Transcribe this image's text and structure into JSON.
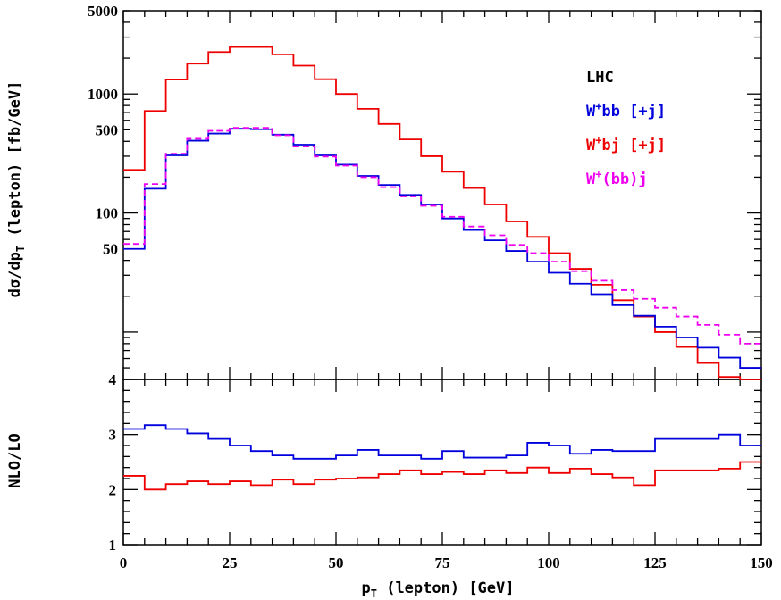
{
  "chart_data": [
    {
      "type": "line",
      "panel": "top",
      "xlabel_main": "p",
      "xlabel_sub": "T",
      "xlabel_rest": " (lepton) [GeV]",
      "ylabel_main": "dσ/dp",
      "ylabel_sub": "T",
      "ylabel_rest": " (lepton) [fb/GeV]",
      "yscale": "log",
      "xlim": [
        0,
        150
      ],
      "ylim": [
        4,
        5000
      ],
      "x_ticks": [
        "0",
        "25",
        "50",
        "75",
        "100",
        "125",
        "150"
      ],
      "y_ticks": [
        {
          "value": 5000,
          "label": "5000"
        },
        {
          "value": 1000,
          "label": "1000"
        },
        {
          "value": 500,
          "label": "500"
        },
        {
          "value": 100,
          "label": "100"
        },
        {
          "value": 50,
          "label": "50"
        },
        {
          "value": 4,
          "label": "4"
        }
      ],
      "bin_edges": [
        0,
        5,
        10,
        15,
        20,
        25,
        30,
        35,
        40,
        45,
        50,
        55,
        60,
        65,
        70,
        75,
        80,
        85,
        90,
        95,
        100,
        105,
        110,
        115,
        120,
        125,
        130,
        135,
        140,
        145,
        150
      ],
      "legend": {
        "title": "LHC",
        "entries": [
          {
            "pre": "W",
            "sup": "+",
            "post": "bb [+j]",
            "color": "#0000dd"
          },
          {
            "pre": "W",
            "sup": "+",
            "post": "bj [+j]",
            "color": "#ee0000"
          },
          {
            "pre": "W",
            "sup": "+",
            "post": "(bb)j",
            "color": "#ee00ee"
          }
        ]
      },
      "series": [
        {
          "color": "#ee0000",
          "style": "solid",
          "values": [
            230,
            720,
            1320,
            1800,
            2250,
            2480,
            2480,
            2150,
            1730,
            1330,
            1000,
            750,
            560,
            415,
            300,
            222,
            162,
            118,
            85,
            63,
            46,
            34,
            25,
            18.5,
            13.5,
            10,
            7.5,
            5.5,
            4.2,
            3.2
          ]
        },
        {
          "color": "#0000dd",
          "style": "solid",
          "values": [
            50,
            160,
            305,
            405,
            465,
            510,
            505,
            455,
            375,
            305,
            255,
            205,
            172,
            142,
            118,
            90,
            72,
            59,
            48,
            39,
            31.5,
            25.5,
            20.8,
            16.8,
            13.7,
            11.1,
            9,
            7.4,
            6.1,
            5
          ]
        },
        {
          "color": "#ee00ee",
          "style": "dashed",
          "values": [
            55,
            175,
            315,
            420,
            490,
            520,
            520,
            450,
            362,
            298,
            250,
            200,
            165,
            138,
            115,
            93,
            77,
            65,
            54,
            46,
            39,
            32.5,
            27,
            22.5,
            19,
            16,
            13.5,
            11.5,
            9.5,
            8
          ]
        }
      ]
    },
    {
      "type": "line",
      "panel": "bottom",
      "ylabel": "NLO/LO",
      "xlim": [
        0,
        150
      ],
      "ylim": [
        1,
        4
      ],
      "y_ticks": [
        "1",
        "2",
        "3",
        "4"
      ],
      "bin_edges": [
        0,
        5,
        10,
        15,
        20,
        25,
        30,
        35,
        40,
        45,
        50,
        55,
        60,
        65,
        70,
        75,
        80,
        85,
        90,
        95,
        100,
        105,
        110,
        115,
        120,
        125,
        130,
        135,
        140,
        145,
        150
      ],
      "series": [
        {
          "color": "#0000dd",
          "style": "solid",
          "values": [
            3.1,
            3.17,
            3.1,
            3.02,
            2.92,
            2.8,
            2.7,
            2.62,
            2.56,
            2.56,
            2.62,
            2.72,
            2.62,
            2.62,
            2.56,
            2.7,
            2.58,
            2.58,
            2.62,
            2.85,
            2.8,
            2.65,
            2.72,
            2.7,
            2.7,
            2.92,
            2.92,
            2.92,
            3.0,
            2.8
          ]
        },
        {
          "color": "#ee0000",
          "style": "solid",
          "values": [
            2.25,
            2.0,
            2.1,
            2.15,
            2.1,
            2.15,
            2.08,
            2.18,
            2.1,
            2.18,
            2.2,
            2.22,
            2.28,
            2.35,
            2.28,
            2.32,
            2.28,
            2.35,
            2.3,
            2.4,
            2.3,
            2.38,
            2.28,
            2.22,
            2.08,
            2.35,
            2.35,
            2.35,
            2.38,
            2.5
          ]
        }
      ]
    }
  ]
}
